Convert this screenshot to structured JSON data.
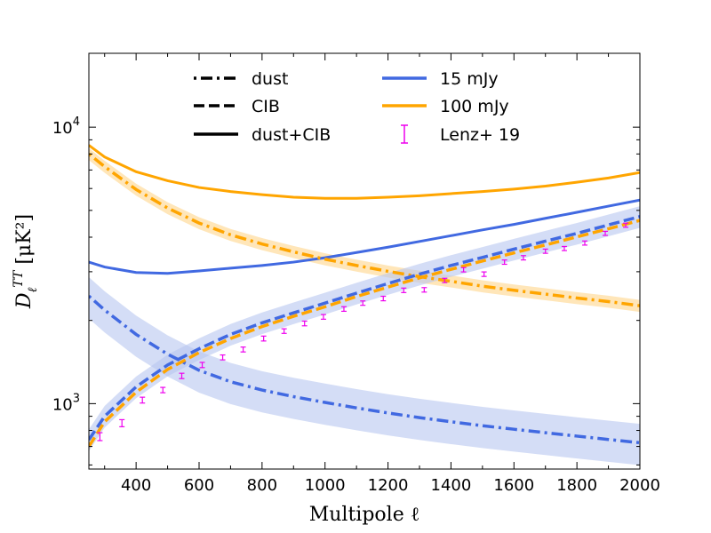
{
  "chart_data": {
    "type": "line",
    "y_scale": "log",
    "xlim": [
      250,
      2000
    ],
    "ylim": [
      580,
      18500
    ],
    "xlabel": "Multipole ℓ",
    "ylabel": "D_ℓ^TT [μK²]",
    "x_ticks": [
      400,
      600,
      800,
      1000,
      1200,
      1400,
      1600,
      1800,
      2000
    ],
    "x_tick_labels": [
      "400",
      "600",
      "800",
      "1000",
      "1200",
      "1400",
      "1600",
      "1800",
      "2000"
    ],
    "y_major_ticks": [
      1000,
      10000
    ],
    "y_tick_labels": {
      "base": "10",
      "exps": [
        "3",
        "4"
      ]
    },
    "colors": {
      "blue": "#4169e1",
      "orange": "#ffa500",
      "magenta": "#ee00ee",
      "blue_band": "#b7c7f0",
      "orange_band": "#ffd58a"
    },
    "legend": {
      "placement": "top",
      "items": [
        {
          "label": "dust",
          "style": "dashdot",
          "color": "#000000"
        },
        {
          "label": "CIB",
          "style": "dashed",
          "color": "#000000"
        },
        {
          "label": "dust+CIB",
          "style": "solid",
          "color": "#000000"
        },
        {
          "label": "15 mJy",
          "style": "solid",
          "color": "#4169e1"
        },
        {
          "label": "100 mJy",
          "style": "solid",
          "color": "#ffa500"
        },
        {
          "label": "Lenz+ 19",
          "style": "errorbar",
          "color": "#ee00ee"
        }
      ]
    },
    "series": [
      {
        "name": "dust+CIB 100 mJy",
        "style": "solid",
        "color": "#ffa500",
        "x": [
          250,
          300,
          400,
          500,
          600,
          700,
          800,
          900,
          1000,
          1100,
          1200,
          1300,
          1400,
          1500,
          1600,
          1700,
          1800,
          1900,
          2000
        ],
        "y": [
          8600,
          7800,
          6900,
          6400,
          6050,
          5850,
          5700,
          5580,
          5530,
          5530,
          5580,
          5650,
          5750,
          5850,
          5970,
          6120,
          6320,
          6550,
          6850
        ]
      },
      {
        "name": "dust+CIB 15 mJy",
        "style": "solid",
        "color": "#4169e1",
        "x": [
          250,
          300,
          400,
          500,
          600,
          700,
          800,
          900,
          1000,
          1100,
          1200,
          1300,
          1400,
          1500,
          1600,
          1700,
          1800,
          1900,
          2000
        ],
        "y": [
          3250,
          3120,
          2980,
          2960,
          3020,
          3090,
          3160,
          3250,
          3370,
          3520,
          3680,
          3860,
          4050,
          4250,
          4450,
          4680,
          4920,
          5180,
          5450
        ]
      },
      {
        "name": "dust 100 mJy",
        "style": "dashdot",
        "color": "#ffa500",
        "band_rel": 0.05,
        "x": [
          250,
          300,
          400,
          500,
          600,
          700,
          800,
          900,
          1000,
          1100,
          1200,
          1300,
          1400,
          1500,
          1600,
          1700,
          1800,
          1900,
          2000
        ],
        "y": [
          8000,
          7200,
          5950,
          5100,
          4500,
          4080,
          3780,
          3540,
          3330,
          3160,
          3010,
          2880,
          2770,
          2660,
          2570,
          2490,
          2410,
          2340,
          2260
        ]
      },
      {
        "name": "dust 15 mJy",
        "style": "dashdot",
        "color": "#4169e1",
        "band_rel": 0.17,
        "x": [
          250,
          300,
          400,
          500,
          600,
          700,
          800,
          900,
          1000,
          1100,
          1200,
          1300,
          1400,
          1500,
          1600,
          1700,
          1800,
          1900,
          2000
        ],
        "y": [
          2450,
          2180,
          1780,
          1510,
          1320,
          1200,
          1120,
          1060,
          1010,
          965,
          925,
          890,
          860,
          832,
          808,
          785,
          763,
          742,
          722
        ]
      },
      {
        "name": "CIB 15 mJy",
        "style": "dashed",
        "color": "#4169e1",
        "band_rel": 0.09,
        "x": [
          250,
          300,
          400,
          500,
          600,
          700,
          800,
          900,
          1000,
          1100,
          1200,
          1300,
          1400,
          1500,
          1600,
          1700,
          1800,
          1900,
          2000
        ],
        "y": [
          740,
          900,
          1150,
          1380,
          1580,
          1780,
          1960,
          2130,
          2310,
          2510,
          2720,
          2940,
          3160,
          3380,
          3620,
          3870,
          4130,
          4430,
          4750
        ]
      },
      {
        "name": "CIB 100 mJy",
        "style": "dashed",
        "color": "#ffa500",
        "x": [
          250,
          300,
          400,
          500,
          600,
          700,
          800,
          900,
          1000,
          1100,
          1200,
          1300,
          1400,
          1500,
          1600,
          1700,
          1800,
          1900,
          2000
        ],
        "y": [
          700,
          860,
          1100,
          1330,
          1530,
          1720,
          1900,
          2070,
          2240,
          2440,
          2640,
          2850,
          3060,
          3280,
          3510,
          3750,
          4010,
          4290,
          4600
        ]
      }
    ],
    "points": {
      "name": "Lenz+ 19",
      "color": "#ee00ee",
      "x": [
        285,
        355,
        420,
        485,
        545,
        610,
        675,
        740,
        805,
        870,
        935,
        995,
        1060,
        1120,
        1185,
        1250,
        1315,
        1380,
        1440,
        1505,
        1570,
        1630,
        1700,
        1760,
        1825,
        1890,
        1955
      ],
      "y": [
        760,
        850,
        1030,
        1120,
        1260,
        1380,
        1470,
        1570,
        1720,
        1830,
        1950,
        2060,
        2200,
        2310,
        2400,
        2570,
        2580,
        2790,
        3050,
        2940,
        3250,
        3370,
        3560,
        3640,
        3810,
        4130,
        4420
      ],
      "err": [
        25,
        25,
        25,
        25,
        28,
        30,
        30,
        32,
        35,
        35,
        38,
        40,
        42,
        42,
        45,
        48,
        48,
        50,
        55,
        55,
        58,
        60,
        62,
        62,
        65,
        70,
        75
      ]
    }
  }
}
